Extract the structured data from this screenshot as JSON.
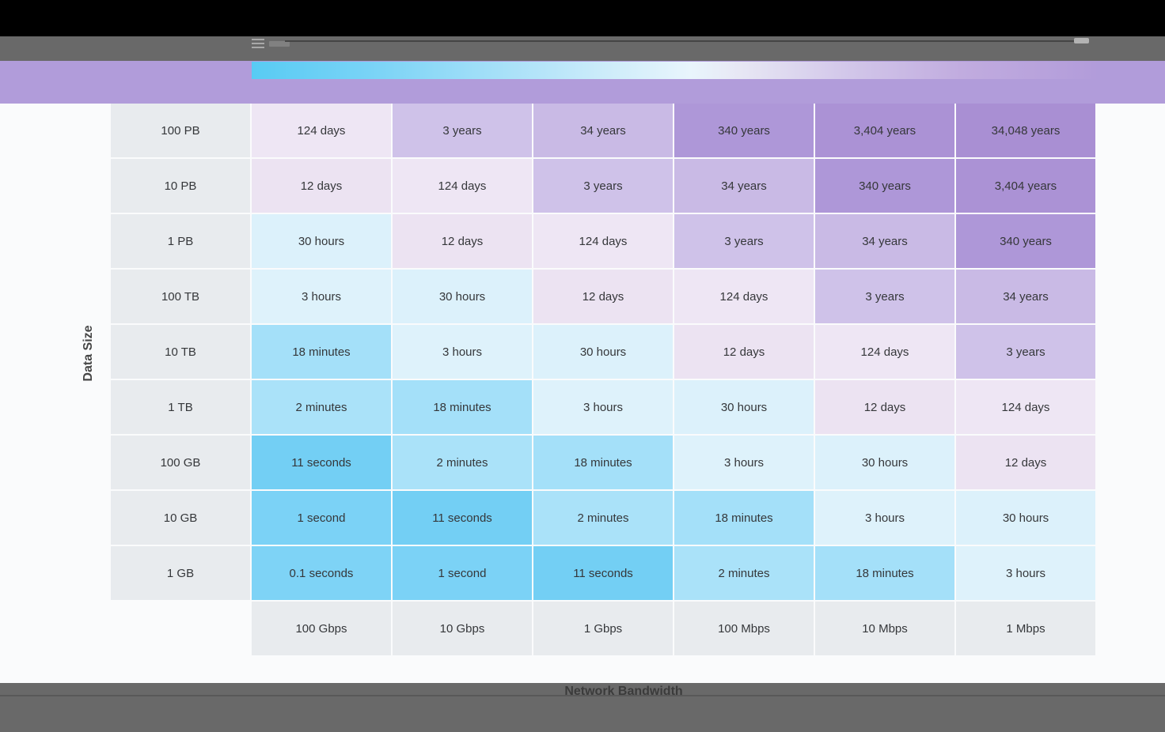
{
  "chart_data": {
    "type": "heatmap",
    "title": "",
    "xlabel": "Network Bandwidth",
    "ylabel": "Data Size",
    "x_categories": [
      "100 Gbps",
      "10 Gbps",
      "1 Gbps",
      "100 Mbps",
      "10 Mbps",
      "1 Mbps"
    ],
    "y_categories": [
      "100 PB",
      "10 PB",
      "1 PB",
      "100 TB",
      "10 TB",
      "1 TB",
      "100 GB",
      "10 GB",
      "1 GB"
    ],
    "cells": [
      [
        "124 days",
        "3 years",
        "34 years",
        "340 years",
        "3,404 years",
        "34,048 years"
      ],
      [
        "12 days",
        "124 days",
        "3 years",
        "34 years",
        "340 years",
        "3,404 years"
      ],
      [
        "30 hours",
        "12 days",
        "124 days",
        "3 years",
        "34 years",
        "340 years"
      ],
      [
        "3 hours",
        "30 hours",
        "12 days",
        "124 days",
        "3 years",
        "34 years"
      ],
      [
        "18 minutes",
        "3 hours",
        "30 hours",
        "12 days",
        "124 days",
        "3 years"
      ],
      [
        "2 minutes",
        "18 minutes",
        "3 hours",
        "30 hours",
        "12 days",
        "124 days"
      ],
      [
        "11 seconds",
        "2 minutes",
        "18 minutes",
        "3 hours",
        "30 hours",
        "12 days"
      ],
      [
        "1 second",
        "11 seconds",
        "2 minutes",
        "18 minutes",
        "3 hours",
        "30 hours"
      ],
      [
        "0.1 seconds",
        "1 second",
        "11 seconds",
        "2 minutes",
        "18 minutes",
        "3 hours"
      ]
    ],
    "legend_position": "top",
    "legend_style": "continuous gradient strip, fast (blue) to slow (purple)",
    "grid": false
  },
  "colors": {
    "value_colors": {
      "0.1 seconds": "#7ed3f6",
      "1 second": "#7bd2f6",
      "11 seconds": "#73cff4",
      "2 minutes": "#aae2f9",
      "18 minutes": "#a4e0f9",
      "3 hours": "#def2fb",
      "30 hours": "#dcf1fb",
      "12 days": "#ece3f2",
      "124 days": "#eee6f4",
      "3 years": "#cfc2e9",
      "34 years": "#c9bae5",
      "340 years": "#ae97d8",
      "3,404 years": "#ab92d5",
      "34,048 years": "#a98fd3"
    },
    "label_cell_bg": "#e8ebee",
    "cell_text": "#35373a",
    "purple_banner": "#b19cda",
    "gradient_start": "#58cbf4",
    "gradient_end": "#b29cda",
    "top_bar": "#000000",
    "toolbar_bar": "#696969",
    "bottom_bar": "#696969",
    "page_bg": "#fafbfc"
  },
  "axes": {
    "y_label": "Data Size",
    "x_label": "Network Bandwidth"
  },
  "toolbar": {
    "icon": "list-menu-icon",
    "progress_line": "seek-line",
    "progress_handle": "seek-handle"
  }
}
